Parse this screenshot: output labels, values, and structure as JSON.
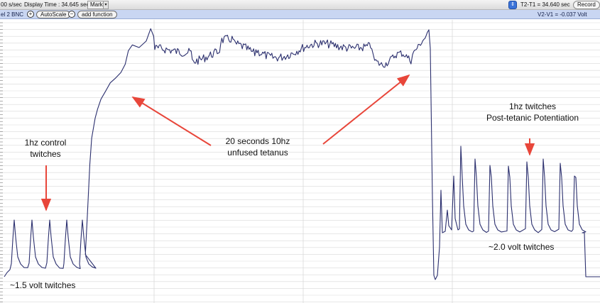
{
  "toolbar": {
    "rate": "00 s/sec",
    "display_time": "Display Time : 34.645 sec",
    "mark_label": "Mark",
    "t2_t1": "T2-T1 = 34.640 sec",
    "record_label": "Record"
  },
  "channel_bar": {
    "channel_label": "el 2 BNC",
    "autoscale_label": "AutoScale",
    "add_function_label": "add function",
    "v2_v1": "V2-V1 = -0.037 Volt"
  },
  "annotations": {
    "control_line1": "1hz control",
    "control_line2": "twitches",
    "tetanus_line1": "20 seconds 10hz",
    "tetanus_line2": "unfused tetanus",
    "ptp_line1": "1hz twitches",
    "ptp_line2": "Post-tetanic Potentiation",
    "left_volt": "~1.5 volt twitches",
    "right_volt": "~2.0 volt twitches"
  },
  "colors": {
    "trace": "#2b2f6e",
    "arrow": "#e8463a",
    "grid": "#d9d9d9",
    "channel_bar": "#c9d6f2"
  },
  "icons": {
    "zoom_in": "magnifier-plus-icon",
    "zoom_out": "magnifier-minus-icon",
    "cursor_toggle": "up-down-arrows-icon",
    "mark_dropdown": "chevron-down-icon"
  }
}
